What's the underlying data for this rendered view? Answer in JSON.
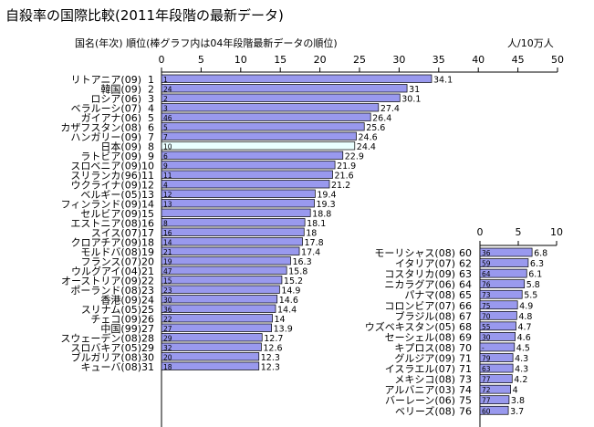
{
  "chart_data": {
    "type": "bar",
    "title": "自殺率の国際比較(2011年段階の最新データ)",
    "subtitle": "国名(年次) 順位(棒グラフ内は04年段階最新データの順位)",
    "unit_label": "人/10万人",
    "colors": {
      "bar": "#9999ee",
      "highlight": "#eaffff",
      "bar_stroke": "#000000",
      "grid": "#000000",
      "text": "#000000"
    },
    "main": {
      "xlim": [
        0,
        50
      ],
      "ticks": [
        0,
        5,
        10,
        15,
        20,
        25,
        30,
        35,
        40,
        45,
        50
      ],
      "highlight_index": 7,
      "rows": [
        {
          "label": "リトアニア(09)",
          "rank": "1",
          "old": "1",
          "value": 34.1
        },
        {
          "label": "韓国(09)",
          "rank": "2",
          "old": "24",
          "value": 31.0
        },
        {
          "label": "ロシア(06)",
          "rank": "3",
          "old": "2",
          "value": 30.1
        },
        {
          "label": "ベラルーシ(07)",
          "rank": "4",
          "old": "3",
          "value": 27.4
        },
        {
          "label": "ガイアナ(06)",
          "rank": "5",
          "old": "46",
          "value": 26.4
        },
        {
          "label": "カザフスタン(08)",
          "rank": "6",
          "old": "5",
          "value": 25.6
        },
        {
          "label": "ハンガリー(09)",
          "rank": "7",
          "old": "7",
          "value": 24.6
        },
        {
          "label": "日本(09)",
          "rank": "8",
          "old": "10",
          "value": 24.4
        },
        {
          "label": "ラトビア(09)",
          "rank": "9",
          "old": "6",
          "value": 22.9
        },
        {
          "label": "スロベニア(09)",
          "rank": "10",
          "old": "9",
          "value": 21.9
        },
        {
          "label": "スリランカ(96)",
          "rank": "11",
          "old": "11",
          "value": 21.6
        },
        {
          "label": "ウクライナ(09)",
          "rank": "12",
          "old": "4",
          "value": 21.2
        },
        {
          "label": "ベルギー(05)",
          "rank": "13",
          "old": "12",
          "value": 19.4
        },
        {
          "label": "フィンランド(09)",
          "rank": "14",
          "old": "13",
          "value": 19.3
        },
        {
          "label": "セルビア(09)",
          "rank": "15",
          "old": "",
          "value": 18.8
        },
        {
          "label": "エストニア(08)",
          "rank": "16",
          "old": "8",
          "value": 18.1
        },
        {
          "label": "スイス(07)",
          "rank": "17",
          "old": "16",
          "value": 18.0
        },
        {
          "label": "クロアチア(09)",
          "rank": "18",
          "old": "14",
          "value": 17.8
        },
        {
          "label": "モルドバ(08)",
          "rank": "19",
          "old": "21",
          "value": 17.4
        },
        {
          "label": "フランス(07)",
          "rank": "20",
          "old": "19",
          "value": 16.3
        },
        {
          "label": "ウルグアイ(04)",
          "rank": "21",
          "old": "47",
          "value": 15.8
        },
        {
          "label": "オーストリア(09)",
          "rank": "22",
          "old": "15",
          "value": 15.2
        },
        {
          "label": "ポーランド(08)",
          "rank": "23",
          "old": "23",
          "value": 14.9
        },
        {
          "label": "香港(09)",
          "rank": "24",
          "old": "30",
          "value": 14.6
        },
        {
          "label": "スリナム(05)",
          "rank": "25",
          "old": "36",
          "value": 14.4
        },
        {
          "label": "チェコ(09)",
          "rank": "26",
          "old": "22",
          "value": 14.0
        },
        {
          "label": "中国(99)",
          "rank": "27",
          "old": "27",
          "value": 13.9
        },
        {
          "label": "スウェーデン(08)",
          "rank": "28",
          "old": "29",
          "value": 12.7
        },
        {
          "label": "スロバキア(05)",
          "rank": "29",
          "old": "32",
          "value": 12.6
        },
        {
          "label": "ブルガリア(08)",
          "rank": "30",
          "old": "20",
          "value": 12.3
        },
        {
          "label": "キューバ(08)",
          "rank": "31",
          "old": "18",
          "value": 12.3
        }
      ]
    },
    "inset": {
      "xlim": [
        0,
        10
      ],
      "ticks": [
        0,
        5,
        10
      ],
      "rows": [
        {
          "label": "モーリシャス(08)",
          "rank": "60",
          "old": "36",
          "value": 6.8
        },
        {
          "label": "イタリア(07)",
          "rank": "62",
          "old": "59",
          "value": 6.3
        },
        {
          "label": "コスタリカ(09)",
          "rank": "63",
          "old": "64",
          "value": 6.1
        },
        {
          "label": "ニカラグア(06)",
          "rank": "64",
          "old": "76",
          "value": 5.8
        },
        {
          "label": "パナマ(08)",
          "rank": "65",
          "old": "73",
          "value": 5.5
        },
        {
          "label": "コロンビア(07)",
          "rank": "66",
          "old": "75",
          "value": 4.9
        },
        {
          "label": "ブラジル(08)",
          "rank": "67",
          "old": "70",
          "value": 4.8
        },
        {
          "label": "ウズベキスタン(05)",
          "rank": "68",
          "old": "55",
          "value": 4.7
        },
        {
          "label": "セーシェル(08)",
          "rank": "69",
          "old": "30",
          "value": 4.6
        },
        {
          "label": "キプロス(08)",
          "rank": "70",
          "old": "-",
          "value": 4.5
        },
        {
          "label": "グルジア(09)",
          "rank": "71",
          "old": "79",
          "value": 4.3
        },
        {
          "label": "イスラエル(07)",
          "rank": "71",
          "old": "63",
          "value": 4.3
        },
        {
          "label": "メキシコ(08)",
          "rank": "73",
          "old": "77",
          "value": 4.2
        },
        {
          "label": "アルバニア(03)",
          "rank": "74",
          "old": "72",
          "value": 4.0
        },
        {
          "label": "バーレーン(06)",
          "rank": "75",
          "old": "77",
          "value": 3.8
        },
        {
          "label": "ベリーズ(08)",
          "rank": "76",
          "old": "60",
          "value": 3.7
        }
      ]
    }
  }
}
